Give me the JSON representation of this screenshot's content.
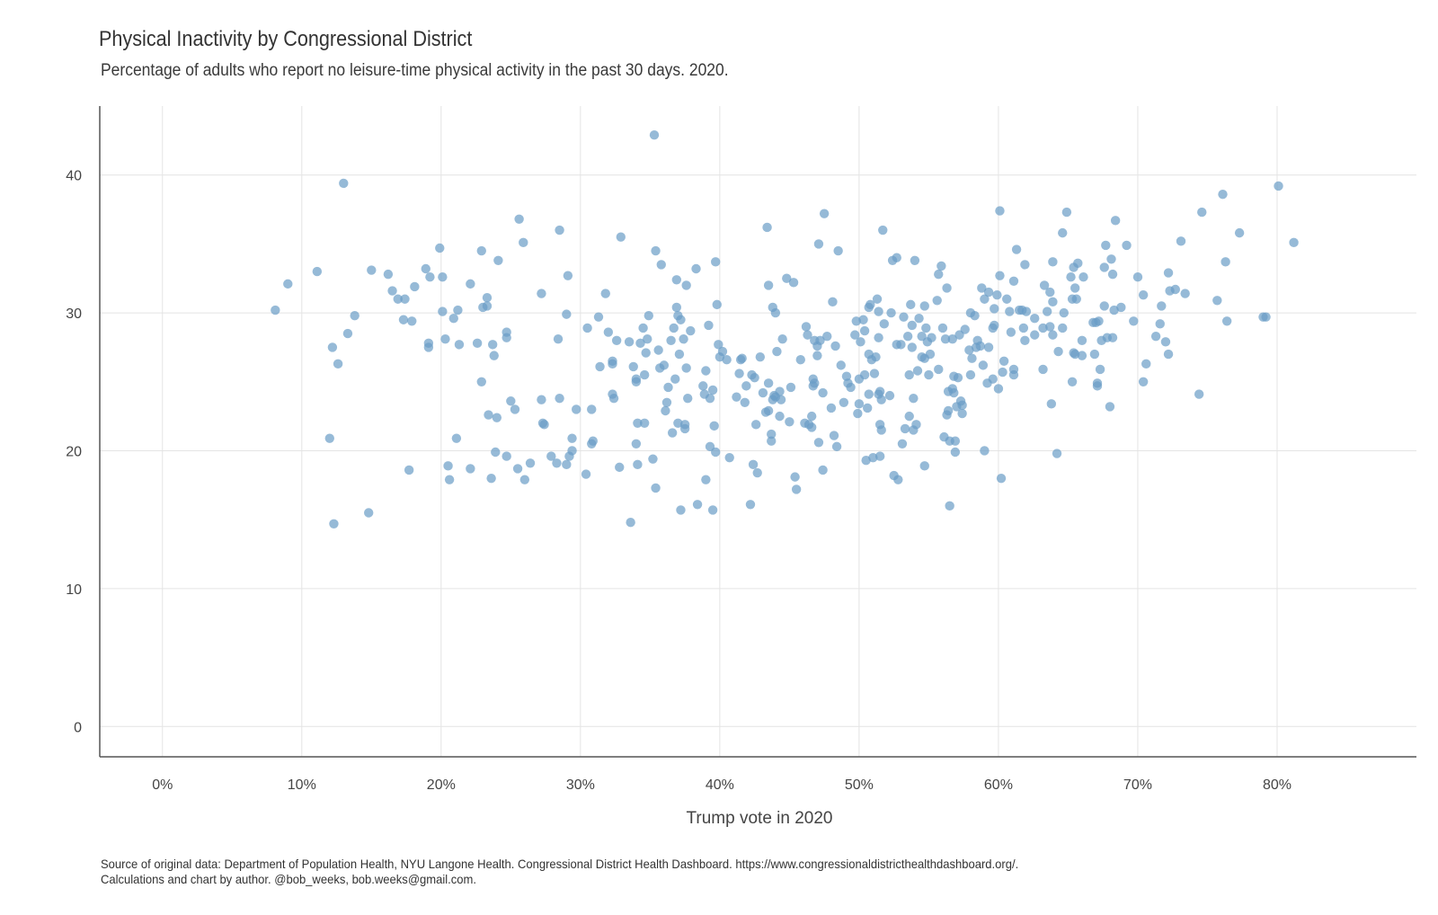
{
  "chart_data": {
    "type": "scatter",
    "title": "Physical Inactivity by Congressional District",
    "subtitle": "Percentage of adults who report no leisure-time physical activity in the past 30 days. 2020.",
    "xlabel": "Trump vote in 2020",
    "ylabel": "",
    "xlim": [
      -4.5,
      90
    ],
    "ylim": [
      -2.2,
      45
    ],
    "x_ticks": [
      0,
      10,
      20,
      30,
      40,
      50,
      60,
      70,
      80
    ],
    "x_tick_labels": [
      "0%",
      "10%",
      "20%",
      "30%",
      "40%",
      "50%",
      "60%",
      "70%",
      "80%"
    ],
    "y_ticks": [
      0,
      10,
      20,
      30,
      40
    ],
    "y_tick_labels": [
      "0",
      "10",
      "20",
      "30",
      "40"
    ],
    "grid": true,
    "point_color": "#6a9cc6",
    "caption": [
      "Source of original data: Department of Population Health, NYU Langone Health. Congressional District Health Dashboard. https://www.congressionaldistricthealthdashboard.org/.",
      "Calculations and chart by author. @bob_weeks, bob.weeks@gmail.com."
    ],
    "points": [
      [
        8.1,
        30.2
      ],
      [
        9,
        32.1
      ],
      [
        11.1,
        33
      ],
      [
        12,
        20.9
      ],
      [
        12.2,
        27.5
      ],
      [
        12.3,
        14.7
      ],
      [
        12.6,
        26.3
      ],
      [
        13,
        39.4
      ],
      [
        13.3,
        28.5
      ],
      [
        13.8,
        29.8
      ],
      [
        14.8,
        15.5
      ],
      [
        15,
        33.1
      ],
      [
        16.2,
        32.8
      ],
      [
        16.5,
        31.6
      ],
      [
        16.9,
        31
      ],
      [
        17.3,
        29.5
      ],
      [
        17.4,
        31
      ],
      [
        17.7,
        18.6
      ],
      [
        17.9,
        29.4
      ],
      [
        18.1,
        31.9
      ],
      [
        18.9,
        33.2
      ],
      [
        19.1,
        27.8
      ],
      [
        19.1,
        27.5
      ],
      [
        19.2,
        32.6
      ],
      [
        19.9,
        34.7
      ],
      [
        20.1,
        30.1
      ],
      [
        20.1,
        32.6
      ],
      [
        20.3,
        28.1
      ],
      [
        20.5,
        18.9
      ],
      [
        20.6,
        17.9
      ],
      [
        20.9,
        29.6
      ],
      [
        21.1,
        20.9
      ],
      [
        21.2,
        30.2
      ],
      [
        21.3,
        27.7
      ],
      [
        22.1,
        32.1
      ],
      [
        22.1,
        18.7
      ],
      [
        22.6,
        27.8
      ],
      [
        22.9,
        25
      ],
      [
        22.9,
        34.5
      ],
      [
        23,
        30.4
      ],
      [
        23.3,
        30.5
      ],
      [
        23.3,
        31.1
      ],
      [
        23.4,
        22.6
      ],
      [
        23.6,
        18
      ],
      [
        23.7,
        27.7
      ],
      [
        23.8,
        26.9
      ],
      [
        23.9,
        19.9
      ],
      [
        24,
        22.4
      ],
      [
        24.1,
        33.8
      ],
      [
        24.7,
        19.6
      ],
      [
        24.7,
        28.6
      ],
      [
        24.7,
        28.2
      ],
      [
        25,
        23.6
      ],
      [
        25.3,
        23
      ],
      [
        25.5,
        18.7
      ],
      [
        25.6,
        36.8
      ],
      [
        25.9,
        35.1
      ],
      [
        26,
        17.9
      ],
      [
        26.4,
        19.1
      ],
      [
        27.2,
        31.4
      ],
      [
        27.2,
        23.7
      ],
      [
        27.3,
        22
      ],
      [
        27.4,
        21.9
      ],
      [
        27.9,
        19.6
      ],
      [
        28.3,
        19.1
      ],
      [
        28.4,
        28.1
      ],
      [
        28.5,
        36
      ],
      [
        28.5,
        23.8
      ],
      [
        29,
        29.9
      ],
      [
        29,
        19
      ],
      [
        29.1,
        32.7
      ],
      [
        29.2,
        19.6
      ],
      [
        29.4,
        20.9
      ],
      [
        29.4,
        20
      ],
      [
        29.7,
        23
      ],
      [
        30.4,
        18.3
      ],
      [
        30.5,
        28.9
      ],
      [
        30.8,
        23
      ],
      [
        30.8,
        20.5
      ],
      [
        30.9,
        20.7
      ],
      [
        31.3,
        29.7
      ],
      [
        31.4,
        26.1
      ],
      [
        31.8,
        31.4
      ],
      [
        32,
        28.6
      ],
      [
        32.3,
        26.5
      ],
      [
        32.3,
        26.3
      ],
      [
        32.3,
        24.1
      ],
      [
        32.4,
        23.8
      ],
      [
        32.6,
        28
      ],
      [
        32.8,
        18.8
      ],
      [
        32.9,
        35.5
      ],
      [
        33.5,
        27.9
      ],
      [
        33.6,
        14.8
      ],
      [
        33.8,
        26.1
      ],
      [
        34,
        25.2
      ],
      [
        34,
        25
      ],
      [
        34,
        20.5
      ],
      [
        34.1,
        22
      ],
      [
        34.1,
        19
      ],
      [
        34.3,
        27.8
      ],
      [
        34.5,
        28.9
      ],
      [
        34.6,
        22
      ],
      [
        34.6,
        25.5
      ],
      [
        34.7,
        27.1
      ],
      [
        34.8,
        28.1
      ],
      [
        34.9,
        29.8
      ],
      [
        35.2,
        19.4
      ],
      [
        35.3,
        42.9
      ],
      [
        35.4,
        34.5
      ],
      [
        35.4,
        17.3
      ],
      [
        35.6,
        27.3
      ],
      [
        35.7,
        26
      ],
      [
        35.8,
        33.5
      ],
      [
        36,
        26.2
      ],
      [
        36.1,
        22.9
      ],
      [
        36.2,
        23.5
      ],
      [
        36.3,
        24.6
      ],
      [
        36.5,
        28
      ],
      [
        36.6,
        21.3
      ],
      [
        36.7,
        28.9
      ],
      [
        36.8,
        25.2
      ],
      [
        36.9,
        30.4
      ],
      [
        36.9,
        32.4
      ],
      [
        37,
        29.8
      ],
      [
        37,
        22
      ],
      [
        37.1,
        27
      ],
      [
        37.2,
        29.5
      ],
      [
        37.2,
        15.7
      ],
      [
        37.4,
        28.1
      ],
      [
        37.5,
        21.6
      ],
      [
        37.5,
        21.9
      ],
      [
        37.6,
        32
      ],
      [
        37.6,
        26
      ],
      [
        37.7,
        23.8
      ],
      [
        37.9,
        28.7
      ],
      [
        38.3,
        33.2
      ],
      [
        38.4,
        16.1
      ],
      [
        38.8,
        24.7
      ],
      [
        38.9,
        24.1
      ],
      [
        39,
        25.8
      ],
      [
        39,
        17.9
      ],
      [
        39.2,
        29.1
      ],
      [
        39.3,
        20.3
      ],
      [
        39.3,
        23.8
      ],
      [
        39.5,
        15.7
      ],
      [
        39.5,
        24.4
      ],
      [
        39.6,
        21.8
      ],
      [
        39.7,
        33.7
      ],
      [
        39.7,
        19.9
      ],
      [
        39.8,
        30.6
      ],
      [
        39.9,
        27.7
      ],
      [
        40,
        26.8
      ],
      [
        40.2,
        27.2
      ],
      [
        40.5,
        26.6
      ],
      [
        40.7,
        19.5
      ],
      [
        41.2,
        23.9
      ],
      [
        41.4,
        25.6
      ],
      [
        41.5,
        26.6
      ],
      [
        41.6,
        26.7
      ],
      [
        41.8,
        23.5
      ],
      [
        41.9,
        24.7
      ],
      [
        42.2,
        16.1
      ],
      [
        42.3,
        25.5
      ],
      [
        42.4,
        19
      ],
      [
        42.5,
        25.3
      ],
      [
        42.6,
        21.9
      ],
      [
        42.7,
        18.4
      ],
      [
        42.9,
        26.8
      ],
      [
        43.1,
        24.2
      ],
      [
        43.3,
        22.8
      ],
      [
        43.4,
        36.2
      ],
      [
        43.5,
        24.9
      ],
      [
        43.5,
        22.9
      ],
      [
        43.5,
        32
      ],
      [
        43.7,
        21.2
      ],
      [
        43.7,
        20.7
      ],
      [
        43.8,
        23.7
      ],
      [
        43.8,
        30.4
      ],
      [
        43.9,
        24
      ],
      [
        44,
        23.9
      ],
      [
        44,
        30
      ],
      [
        44.1,
        27.2
      ],
      [
        44.3,
        24.3
      ],
      [
        44.3,
        22.5
      ],
      [
        44.4,
        23.7
      ],
      [
        44.5,
        28.1
      ],
      [
        44.8,
        32.5
      ],
      [
        45,
        22.1
      ],
      [
        45.1,
        24.6
      ],
      [
        45.3,
        32.2
      ],
      [
        45.4,
        18.1
      ],
      [
        45.5,
        17.2
      ],
      [
        45.8,
        26.6
      ],
      [
        46.1,
        22
      ],
      [
        46.2,
        29
      ],
      [
        46.3,
        28.4
      ],
      [
        46.4,
        21.9
      ],
      [
        46.6,
        22.5
      ],
      [
        46.6,
        21.7
      ],
      [
        46.7,
        25.2
      ],
      [
        46.7,
        24.7
      ],
      [
        46.8,
        24.9
      ],
      [
        46.8,
        28
      ],
      [
        47,
        26.9
      ],
      [
        47,
        27.6
      ],
      [
        47.1,
        20.6
      ],
      [
        47.1,
        35
      ],
      [
        47.2,
        28
      ],
      [
        47.4,
        24.2
      ],
      [
        47.4,
        18.6
      ],
      [
        47.5,
        37.2
      ],
      [
        47.7,
        28.3
      ],
      [
        48,
        23.1
      ],
      [
        48.1,
        30.8
      ],
      [
        48.2,
        21.1
      ],
      [
        48.3,
        27.6
      ],
      [
        48.4,
        20.3
      ],
      [
        48.5,
        34.5
      ],
      [
        48.7,
        26.2
      ],
      [
        48.9,
        23.5
      ],
      [
        49.1,
        25.4
      ],
      [
        49.2,
        24.9
      ],
      [
        49.4,
        24.6
      ],
      [
        49.7,
        28.4
      ],
      [
        49.8,
        29.4
      ],
      [
        49.9,
        22.7
      ],
      [
        50,
        25.2
      ],
      [
        50,
        23.4
      ],
      [
        50.1,
        27.9
      ],
      [
        50.3,
        29.5
      ],
      [
        50.4,
        25.5
      ],
      [
        50.4,
        28.7
      ],
      [
        50.5,
        19.3
      ],
      [
        50.6,
        23.1
      ],
      [
        50.7,
        27
      ],
      [
        50.7,
        24.1
      ],
      [
        50.7,
        30.4
      ],
      [
        50.8,
        30.6
      ],
      [
        50.9,
        26.6
      ],
      [
        51,
        19.5
      ],
      [
        51.1,
        25.6
      ],
      [
        51.2,
        26.8
      ],
      [
        51.3,
        31
      ],
      [
        51.4,
        28.2
      ],
      [
        51.4,
        30.1
      ],
      [
        51.4,
        24.1
      ],
      [
        51.5,
        24.3
      ],
      [
        51.5,
        21.9
      ],
      [
        51.6,
        21.5
      ],
      [
        51.7,
        36
      ],
      [
        51.8,
        29.2
      ],
      [
        51.5,
        19.6
      ],
      [
        51.6,
        23.7
      ],
      [
        52.2,
        24
      ],
      [
        52.3,
        30
      ],
      [
        52.4,
        33.8
      ],
      [
        52.5,
        18.2
      ],
      [
        52.7,
        34
      ],
      [
        52.7,
        27.7
      ],
      [
        52.8,
        17.9
      ],
      [
        53,
        27.7
      ],
      [
        53.1,
        20.5
      ],
      [
        53.2,
        29.7
      ],
      [
        53.3,
        21.6
      ],
      [
        53.5,
        28.3
      ],
      [
        53.6,
        25.5
      ],
      [
        53.6,
        22.5
      ],
      [
        53.7,
        30.6
      ],
      [
        53.8,
        29.1
      ],
      [
        53.8,
        27.5
      ],
      [
        53.9,
        21.5
      ],
      [
        53.9,
        23.8
      ],
      [
        54,
        33.8
      ],
      [
        54.1,
        21.9
      ],
      [
        54.2,
        25.8
      ],
      [
        54.3,
        29.6
      ],
      [
        54.5,
        28.3
      ],
      [
        54.5,
        26.8
      ],
      [
        54.7,
        30.5
      ],
      [
        54.7,
        26.7
      ],
      [
        54.7,
        18.9
      ],
      [
        54.8,
        28.9
      ],
      [
        54.9,
        27.9
      ],
      [
        55,
        25.5
      ],
      [
        55.1,
        27
      ],
      [
        55.2,
        28.2
      ],
      [
        55.6,
        30.9
      ],
      [
        55.7,
        32.8
      ],
      [
        55.7,
        25.9
      ],
      [
        55.9,
        33.4
      ],
      [
        56,
        28.9
      ],
      [
        56.1,
        21
      ],
      [
        56.2,
        28.1
      ],
      [
        56.3,
        31.8
      ],
      [
        56.3,
        22.6
      ],
      [
        56.4,
        24.3
      ],
      [
        56.4,
        22.9
      ],
      [
        56.5,
        20.7
      ],
      [
        56.5,
        16
      ],
      [
        56.7,
        24.5
      ],
      [
        56.7,
        28.1
      ],
      [
        56.8,
        24.2
      ],
      [
        56.8,
        25.4
      ],
      [
        56.9,
        20.7
      ],
      [
        56.9,
        19.9
      ],
      [
        57,
        23.2
      ],
      [
        57.1,
        25.3
      ],
      [
        57.2,
        28.4
      ],
      [
        57.3,
        23.6
      ],
      [
        57.4,
        22.7
      ],
      [
        57.4,
        23.3
      ],
      [
        57.6,
        28.8
      ],
      [
        57.9,
        27.3
      ],
      [
        58,
        25.5
      ],
      [
        58,
        30
      ],
      [
        58.1,
        26.7
      ],
      [
        58.3,
        29.8
      ],
      [
        58.4,
        27.5
      ],
      [
        58.5,
        28
      ],
      [
        58.7,
        27.6
      ],
      [
        58.8,
        31.8
      ],
      [
        58.9,
        26.2
      ],
      [
        59,
        31
      ],
      [
        59,
        20
      ],
      [
        59.2,
        24.9
      ],
      [
        59.3,
        27.5
      ],
      [
        59.3,
        31.5
      ],
      [
        59.6,
        25.2
      ],
      [
        59.6,
        28.9
      ],
      [
        59.7,
        30.3
      ],
      [
        59.7,
        29.1
      ],
      [
        59.9,
        31.3
      ],
      [
        60,
        24.5
      ],
      [
        60.1,
        32.7
      ],
      [
        60.1,
        37.4
      ],
      [
        60.2,
        18
      ],
      [
        60.3,
        25.7
      ],
      [
        60.4,
        26.5
      ],
      [
        60.6,
        31
      ],
      [
        60.8,
        30.1
      ],
      [
        60.9,
        28.6
      ],
      [
        61.1,
        32.3
      ],
      [
        61.1,
        25.5
      ],
      [
        61.1,
        25.9
      ],
      [
        61.3,
        34.6
      ],
      [
        61.5,
        30.2
      ],
      [
        61.7,
        30.2
      ],
      [
        61.8,
        28.9
      ],
      [
        61.9,
        28
      ],
      [
        61.9,
        33.5
      ],
      [
        62,
        30.1
      ],
      [
        62.6,
        29.6
      ],
      [
        62.6,
        28.4
      ],
      [
        63.2,
        25.9
      ],
      [
        63.2,
        28.9
      ],
      [
        63.3,
        32
      ],
      [
        63.5,
        30.1
      ],
      [
        63.7,
        31.5
      ],
      [
        63.7,
        29
      ],
      [
        63.8,
        23.4
      ],
      [
        63.9,
        28.4
      ],
      [
        63.9,
        30.8
      ],
      [
        63.9,
        33.7
      ],
      [
        64.2,
        19.8
      ],
      [
        64.3,
        27.2
      ],
      [
        64.6,
        35.8
      ],
      [
        64.6,
        28.9
      ],
      [
        64.7,
        30
      ],
      [
        64.9,
        37.3
      ],
      [
        65.2,
        32.6
      ],
      [
        65.3,
        25
      ],
      [
        65.3,
        31
      ],
      [
        65.4,
        33.3
      ],
      [
        65.4,
        27.1
      ],
      [
        65.5,
        27
      ],
      [
        65.5,
        31.8
      ],
      [
        65.6,
        31
      ],
      [
        65.7,
        33.6
      ],
      [
        66,
        26.9
      ],
      [
        66,
        28
      ],
      [
        66.1,
        32.6
      ],
      [
        66.8,
        29.3
      ],
      [
        66.9,
        27
      ],
      [
        67,
        29.3
      ],
      [
        67.1,
        24.9
      ],
      [
        67.1,
        24.7
      ],
      [
        67.2,
        29.4
      ],
      [
        67.3,
        25.9
      ],
      [
        67.4,
        28
      ],
      [
        67.6,
        33.3
      ],
      [
        67.6,
        30.5
      ],
      [
        67.7,
        34.9
      ],
      [
        67.8,
        28.2
      ],
      [
        68,
        23.2
      ],
      [
        68.1,
        33.9
      ],
      [
        68.2,
        32.8
      ],
      [
        68.2,
        28.2
      ],
      [
        68.3,
        30.2
      ],
      [
        68.4,
        36.7
      ],
      [
        68.8,
        30.4
      ],
      [
        69.2,
        34.9
      ],
      [
        69.7,
        29.4
      ],
      [
        70,
        32.6
      ],
      [
        70.4,
        31.3
      ],
      [
        70.4,
        25
      ],
      [
        70.6,
        26.3
      ],
      [
        71.3,
        28.3
      ],
      [
        71.6,
        29.2
      ],
      [
        71.7,
        30.5
      ],
      [
        72,
        27.9
      ],
      [
        72.2,
        27
      ],
      [
        72.2,
        32.9
      ],
      [
        72.3,
        31.6
      ],
      [
        72.7,
        31.7
      ],
      [
        73.1,
        35.2
      ],
      [
        73.4,
        31.4
      ],
      [
        74.4,
        24.1
      ],
      [
        74.6,
        37.3
      ],
      [
        75.7,
        30.9
      ],
      [
        76.1,
        38.6
      ],
      [
        76.3,
        33.7
      ],
      [
        76.4,
        29.4
      ],
      [
        77.3,
        35.8
      ],
      [
        79,
        29.7
      ],
      [
        79.2,
        29.7
      ],
      [
        80.1,
        39.2
      ],
      [
        81.2,
        35.1
      ]
    ]
  }
}
